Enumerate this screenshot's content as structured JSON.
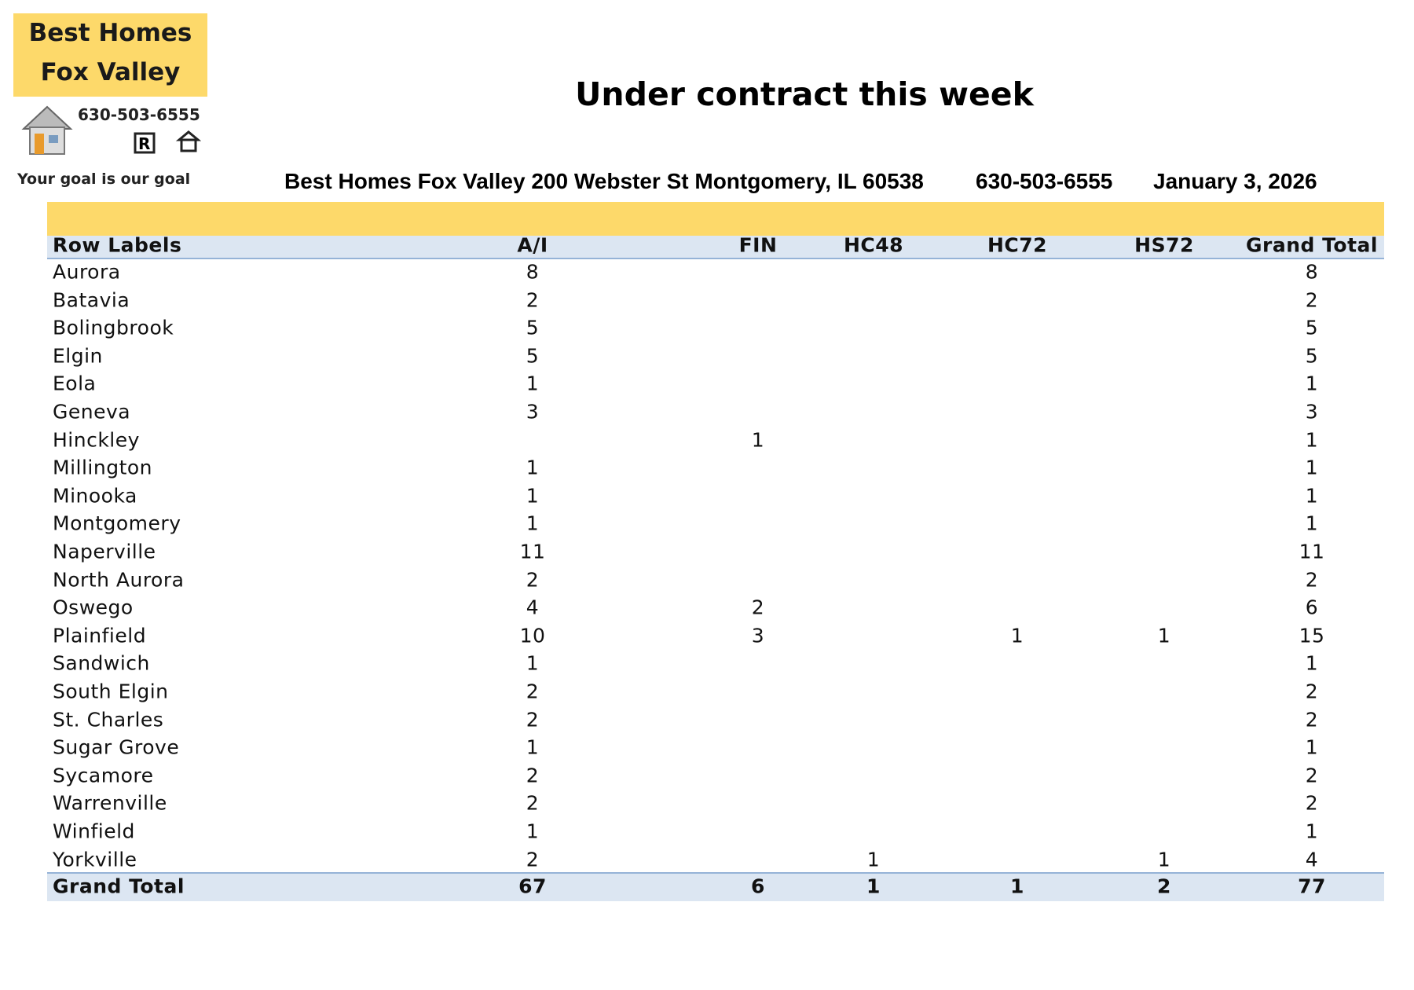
{
  "logo": {
    "name_line1": "Best Homes",
    "name_line2": "Fox Valley",
    "phone": "630-503-6555",
    "tagline": "Your goal is our goal"
  },
  "header": {
    "title": "Under contract this week",
    "company": "Best Homes Fox Valley 200 Webster St Montgomery, IL 60538",
    "phone": "630-503-6555",
    "date": "January 3, 2026"
  },
  "table": {
    "columns": [
      "Row Labels",
      "A/I",
      "FIN",
      "HC48",
      "HC72",
      "HS72",
      "Grand Total"
    ],
    "rows": [
      [
        "Aurora",
        8,
        null,
        null,
        null,
        null,
        8
      ],
      [
        "Batavia",
        2,
        null,
        null,
        null,
        null,
        2
      ],
      [
        "Bolingbrook",
        5,
        null,
        null,
        null,
        null,
        5
      ],
      [
        "Elgin",
        5,
        null,
        null,
        null,
        null,
        5
      ],
      [
        "Eola",
        1,
        null,
        null,
        null,
        null,
        1
      ],
      [
        "Geneva",
        3,
        null,
        null,
        null,
        null,
        3
      ],
      [
        "Hinckley",
        null,
        1,
        null,
        null,
        null,
        1
      ],
      [
        "Millington",
        1,
        null,
        null,
        null,
        null,
        1
      ],
      [
        "Minooka",
        1,
        null,
        null,
        null,
        null,
        1
      ],
      [
        "Montgomery",
        1,
        null,
        null,
        null,
        null,
        1
      ],
      [
        "Naperville",
        11,
        null,
        null,
        null,
        null,
        11
      ],
      [
        "North Aurora",
        2,
        null,
        null,
        null,
        null,
        2
      ],
      [
        "Oswego",
        4,
        2,
        null,
        null,
        null,
        6
      ],
      [
        "Plainfield",
        10,
        3,
        null,
        1,
        1,
        15
      ],
      [
        "Sandwich",
        1,
        null,
        null,
        null,
        null,
        1
      ],
      [
        "South Elgin",
        2,
        null,
        null,
        null,
        null,
        2
      ],
      [
        "St. Charles",
        2,
        null,
        null,
        null,
        null,
        2
      ],
      [
        "Sugar Grove",
        1,
        null,
        null,
        null,
        null,
        1
      ],
      [
        "Sycamore",
        2,
        null,
        null,
        null,
        null,
        2
      ],
      [
        "Warrenville",
        2,
        null,
        null,
        null,
        null,
        2
      ],
      [
        "Winfield",
        1,
        null,
        null,
        null,
        null,
        1
      ],
      [
        "Yorkville",
        2,
        null,
        1,
        null,
        1,
        4
      ]
    ],
    "total": [
      "Grand Total",
      67,
      6,
      1,
      1,
      2,
      77
    ]
  }
}
